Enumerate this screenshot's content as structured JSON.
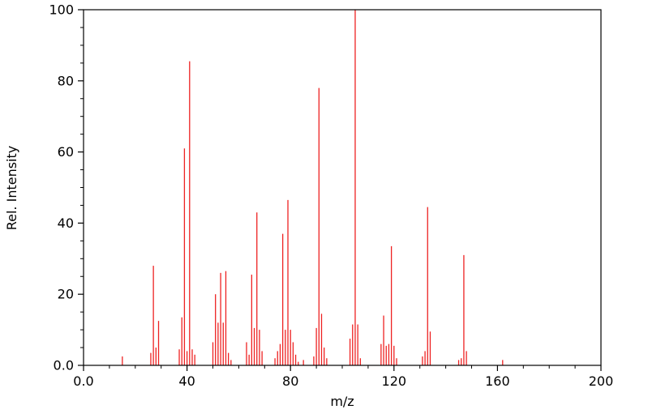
{
  "chart_data": {
    "type": "bar",
    "subtype": "mass-spectrum-stick-plot",
    "title": "",
    "xlabel": "m/z",
    "ylabel": "Rel. Intensity",
    "xlim": [
      0,
      200
    ],
    "ylim": [
      0,
      100
    ],
    "grid": false,
    "legend": "none",
    "frame": "full-box",
    "stick_color": "#ee2222",
    "axis_color": "#000000",
    "background_color": "#ffffff",
    "x_major_ticks": [
      0,
      40,
      80,
      120,
      160,
      200
    ],
    "x_tick_labels": [
      "0.0",
      "40",
      "80",
      "120",
      "160",
      "200"
    ],
    "x_minor_step": 10,
    "y_major_ticks": [
      0,
      20,
      40,
      60,
      80,
      100
    ],
    "y_tick_labels": [
      "0.0",
      "20",
      "40",
      "60",
      "80",
      "100"
    ],
    "y_minor_step": 5,
    "peaks": [
      [
        15,
        2.5
      ],
      [
        26,
        3.5
      ],
      [
        27,
        28
      ],
      [
        28,
        5
      ],
      [
        29,
        12.5
      ],
      [
        37,
        4.5
      ],
      [
        38,
        13.5
      ],
      [
        39,
        61
      ],
      [
        40,
        4
      ],
      [
        41,
        85.5
      ],
      [
        42,
        4.5
      ],
      [
        43,
        3
      ],
      [
        50,
        6.5
      ],
      [
        51,
        20
      ],
      [
        52,
        12
      ],
      [
        53,
        26
      ],
      [
        54,
        12
      ],
      [
        55,
        26.5
      ],
      [
        56,
        3.5
      ],
      [
        57,
        1.5
      ],
      [
        63,
        6.5
      ],
      [
        64,
        3
      ],
      [
        65,
        25.5
      ],
      [
        66,
        10.5
      ],
      [
        67,
        43
      ],
      [
        68,
        10
      ],
      [
        69,
        4
      ],
      [
        74,
        2
      ],
      [
        75,
        4
      ],
      [
        76,
        6
      ],
      [
        77,
        37
      ],
      [
        78,
        10
      ],
      [
        79,
        46.5
      ],
      [
        80,
        10
      ],
      [
        81,
        6.5
      ],
      [
        82,
        3
      ],
      [
        83,
        1
      ],
      [
        85,
        1.5
      ],
      [
        89,
        2.5
      ],
      [
        90,
        10.5
      ],
      [
        91,
        78
      ],
      [
        92,
        14.5
      ],
      [
        93,
        5
      ],
      [
        94,
        2
      ],
      [
        103,
        7.5
      ],
      [
        104,
        11.5
      ],
      [
        105,
        100
      ],
      [
        106,
        11.5
      ],
      [
        107,
        2
      ],
      [
        115,
        6
      ],
      [
        116,
        14
      ],
      [
        117,
        5.5
      ],
      [
        118,
        6
      ],
      [
        119,
        33.5
      ],
      [
        120,
        5.5
      ],
      [
        121,
        2
      ],
      [
        131,
        2.5
      ],
      [
        132,
        4
      ],
      [
        133,
        44.5
      ],
      [
        134,
        9.5
      ],
      [
        145,
        1.5
      ],
      [
        146,
        2
      ],
      [
        147,
        31
      ],
      [
        148,
        4
      ],
      [
        162,
        1.5
      ]
    ]
  }
}
